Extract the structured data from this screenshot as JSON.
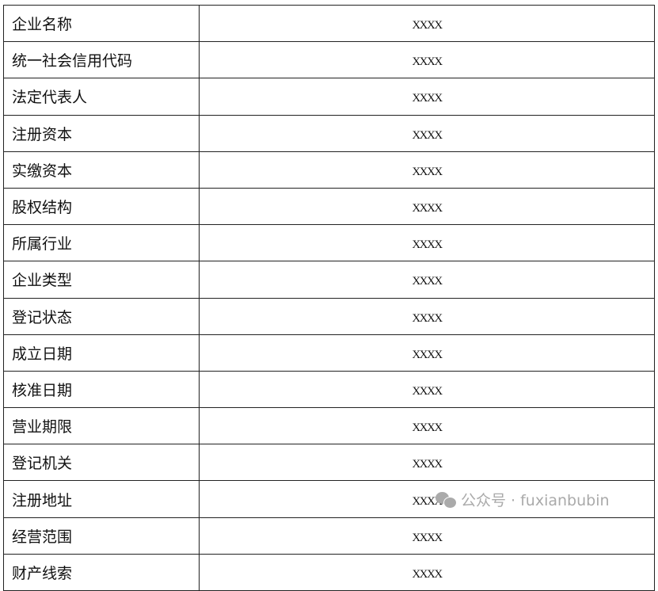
{
  "rows": [
    {
      "label": "企业名称",
      "value": "XXXX"
    },
    {
      "label": "统一社会信用代码",
      "value": "XXXX"
    },
    {
      "label": "法定代表人",
      "value": "XXXX"
    },
    {
      "label": "注册资本",
      "value": "XXXX"
    },
    {
      "label": "实缴资本",
      "value": "XXXX"
    },
    {
      "label": "股权结构",
      "value": "XXXX"
    },
    {
      "label": "所属行业",
      "value": "XXXX"
    },
    {
      "label": "企业类型",
      "value": "XXXX"
    },
    {
      "label": "登记状态",
      "value": "XXXX"
    },
    {
      "label": "成立日期",
      "value": "XXXX"
    },
    {
      "label": "核准日期",
      "value": "XXXX"
    },
    {
      "label": "营业期限",
      "value": "XXXX"
    },
    {
      "label": "登记机关",
      "value": "XXXX"
    },
    {
      "label": "注册地址",
      "value": "XXXX"
    },
    {
      "label": "经营范围",
      "value": "XXXX"
    },
    {
      "label": "财产线索",
      "value": "XXXX"
    }
  ],
  "watermark": {
    "icon": "wechat-icon",
    "text": "公众号 · fuxianbubin"
  }
}
